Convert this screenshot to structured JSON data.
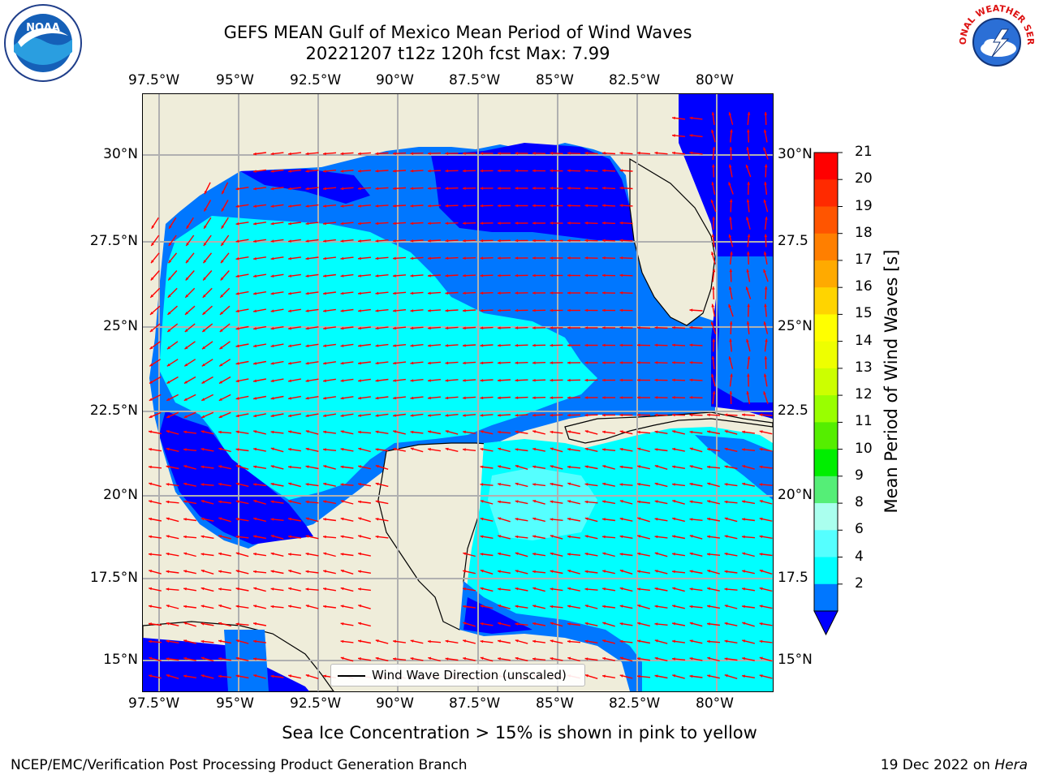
{
  "title": {
    "line1": "GEFS MEAN Gulf of Mexico Mean Period of Wind Waves",
    "line2": "20221207 t12z 120h fcst   Max: 7.99"
  },
  "logos": {
    "left": "NOAA",
    "right": "NATIONAL WEATHER SERVICE"
  },
  "axes": {
    "lon_labels": [
      "97.5°W",
      "95°W",
      "92.5°W",
      "90°W",
      "87.5°W",
      "85°W",
      "82.5°W",
      "80°W"
    ],
    "lat_labels_left": [
      "30°N",
      "27.5°N",
      "25°N",
      "22.5°N",
      "20°N",
      "17.5°N",
      "15°N"
    ],
    "lat_labels_right": [
      "30°N",
      "27.5",
      "25°N",
      "22.5",
      "20°N",
      "17.5",
      "15°N"
    ]
  },
  "colorbar": {
    "title": "Mean Period of Wind Waves [s]",
    "ticks": [
      "21",
      "20",
      "19",
      "18",
      "17",
      "16",
      "15",
      "14",
      "13",
      "12",
      "11",
      "10",
      "9",
      "8",
      "6",
      "4",
      "2"
    ],
    "colors": [
      "#ff0000",
      "#ff2a00",
      "#ff5500",
      "#ff7f00",
      "#ffaa00",
      "#ffd400",
      "#ffff00",
      "#eeff00",
      "#ccff00",
      "#99ff00",
      "#55ee00",
      "#00ee00",
      "#55ee77",
      "#aaffee",
      "#55ffff",
      "#00ffff",
      "#0077ff"
    ],
    "extend_color": "#0000ff"
  },
  "legend": {
    "label": "Wind Wave Direction (unscaled)"
  },
  "footer": {
    "note": "Sea Ice Concentration > 15% is shown in pink to yellow",
    "left": "NCEP/EMC/Verification Post Processing Product Generation Branch",
    "right_prefix": "19 Dec 2022 on ",
    "right_host": "Hera"
  }
}
